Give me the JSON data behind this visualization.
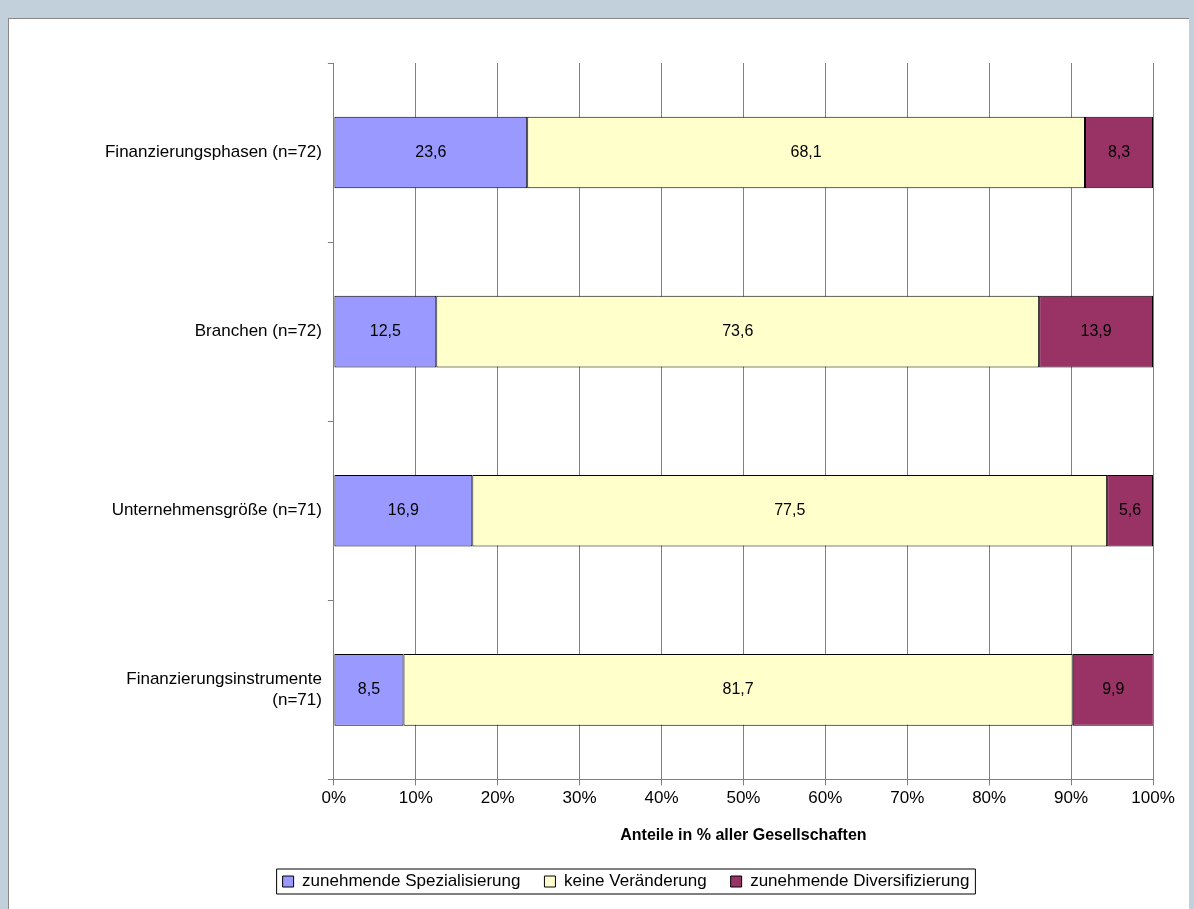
{
  "chart_data": {
    "type": "bar",
    "orientation": "horizontal",
    "stacked": true,
    "categories": [
      "Finanzierungsphasen (n=72)",
      "Branchen (n=72)",
      "Unternehmensgröße (n=71)",
      "Finanzierungsinstrumente (n=71)"
    ],
    "series": [
      {
        "name": "zunehmende Spezialisierung",
        "color": "#9999ff",
        "values": [
          23.6,
          12.5,
          16.9,
          8.5
        ],
        "value_labels": [
          "23,6",
          "12,5",
          "16,9",
          "8,5"
        ]
      },
      {
        "name": "keine Veränderung",
        "color": "#ffffcc",
        "values": [
          68.1,
          73.6,
          77.5,
          81.7
        ],
        "value_labels": [
          "68,1",
          "73,6",
          "77,5",
          "81,7"
        ]
      },
      {
        "name": "zunehmende Diversifizierung",
        "color": "#993366",
        "values": [
          8.3,
          13.9,
          5.6,
          9.9
        ],
        "value_labels": [
          "8,3",
          "13,9",
          "5,6",
          "9,9"
        ]
      }
    ],
    "xlim": [
      0,
      100
    ],
    "xticks": [
      {
        "value": 0,
        "label": "0%"
      },
      {
        "value": 10,
        "label": "10%"
      },
      {
        "value": 20,
        "label": "20%"
      },
      {
        "value": 30,
        "label": "30%"
      },
      {
        "value": 40,
        "label": "40%"
      },
      {
        "value": 50,
        "label": "50%"
      },
      {
        "value": 60,
        "label": "60%"
      },
      {
        "value": 70,
        "label": "70%"
      },
      {
        "value": 80,
        "label": "80%"
      },
      {
        "value": 90,
        "label": "90%"
      },
      {
        "value": 100,
        "label": "100%"
      }
    ],
    "xlabel": "Anteile in % aller Gesellschaften",
    "grid": "x",
    "legend": "bottom"
  }
}
